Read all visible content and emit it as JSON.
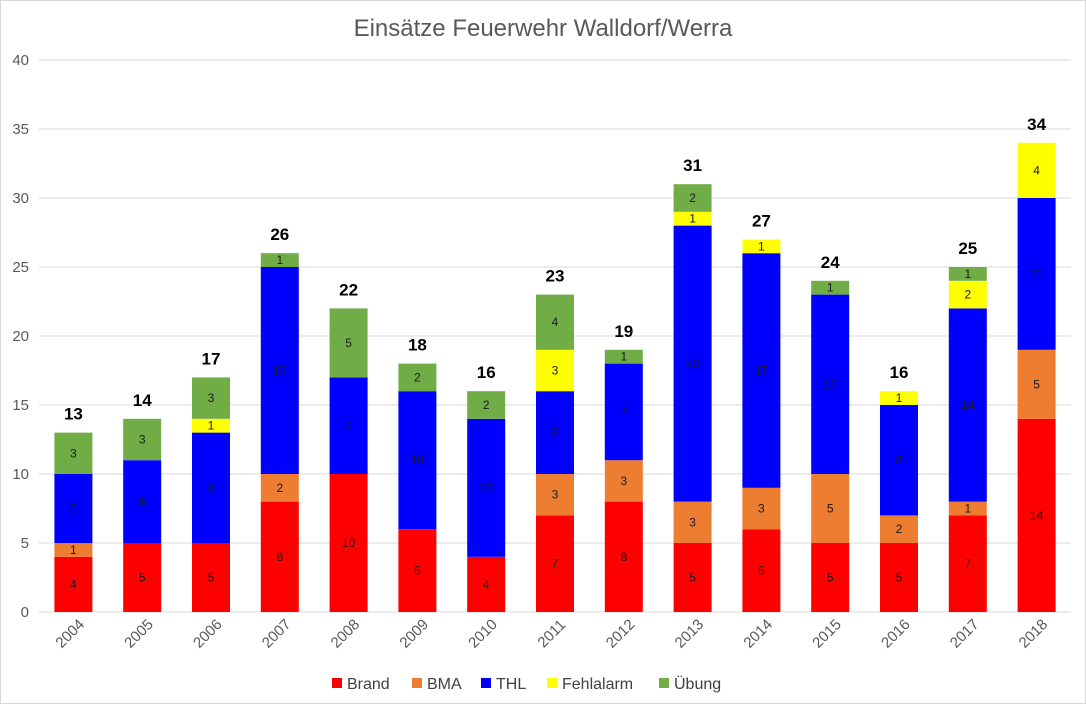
{
  "chart_data": {
    "type": "bar",
    "stacked": true,
    "title": "Einsätze Feuerwehr Walldorf/Werra",
    "categories": [
      "2004",
      "2005",
      "2006",
      "2007",
      "2008",
      "2009",
      "2010",
      "2011",
      "2012",
      "2013",
      "2014",
      "2015",
      "2016",
      "2017",
      "2018"
    ],
    "series": [
      {
        "name": "Brand",
        "color": "#ff0000",
        "values": [
          4,
          5,
          5,
          8,
          10,
          6,
          4,
          7,
          8,
          5,
          6,
          5,
          5,
          7,
          14
        ]
      },
      {
        "name": "BMA",
        "color": "#ed7d31",
        "values": [
          1,
          0,
          0,
          2,
          0,
          0,
          0,
          3,
          3,
          3,
          3,
          5,
          2,
          1,
          5
        ]
      },
      {
        "name": "THL",
        "color": "#0000ff",
        "values": [
          5,
          6,
          8,
          15,
          7,
          10,
          10,
          6,
          7,
          20,
          17,
          13,
          8,
          14,
          11
        ]
      },
      {
        "name": "Fehlalarm",
        "color": "#ffff00",
        "values": [
          0,
          0,
          1,
          0,
          0,
          0,
          0,
          3,
          0,
          1,
          1,
          0,
          1,
          2,
          4
        ]
      },
      {
        "name": "Übung",
        "color": "#70ad47",
        "values": [
          3,
          3,
          3,
          1,
          5,
          2,
          2,
          4,
          1,
          2,
          0,
          1,
          0,
          1,
          0
        ]
      }
    ],
    "totals": [
      13,
      14,
      17,
      26,
      22,
      18,
      16,
      23,
      19,
      31,
      27,
      24,
      16,
      25,
      34
    ],
    "ylim": [
      0,
      40
    ],
    "yticks": [
      0,
      5,
      10,
      15,
      20,
      25,
      30,
      35,
      40
    ],
    "grid": true,
    "legend": "bottom",
    "xlabel": "",
    "ylabel": ""
  }
}
